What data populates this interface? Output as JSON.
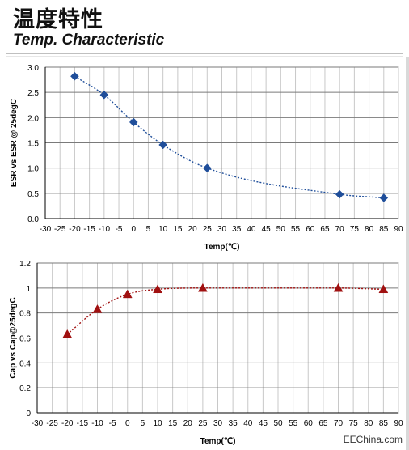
{
  "header": {
    "title_zh": "温度特性",
    "title_en": "Temp. Characteristic"
  },
  "watermark": "EEChina.com",
  "chart_data": [
    {
      "type": "line",
      "xlabel": "Temp(℃)",
      "ylabel": "ESR vs ESR @ 25degC",
      "xlim": [
        -30,
        90
      ],
      "ylim": [
        0,
        3
      ],
      "x_ticks": [
        -30,
        -25,
        -20,
        -15,
        -10,
        -5,
        0,
        5,
        10,
        15,
        20,
        25,
        30,
        35,
        40,
        45,
        50,
        55,
        60,
        65,
        70,
        75,
        80,
        85,
        90
      ],
      "y_ticks": [
        "0.0",
        "0.5",
        "1.0",
        "1.5",
        "2.0",
        "2.5",
        "3.0"
      ],
      "grid": true,
      "marker": "diamond",
      "color": "#1f4e9a",
      "x": [
        -20,
        -10,
        0,
        10,
        25,
        70,
        85
      ],
      "y": [
        2.82,
        2.45,
        1.91,
        1.46,
        1.0,
        0.48,
        0.41
      ]
    },
    {
      "type": "line",
      "xlabel": "Temp(℃)",
      "ylabel": "Cap  vs Cap@25degC",
      "xlim": [
        -30,
        90
      ],
      "ylim": [
        0,
        1.2
      ],
      "x_ticks": [
        -30,
        -25,
        -20,
        -15,
        -10,
        -5,
        0,
        5,
        10,
        15,
        20,
        25,
        30,
        35,
        40,
        45,
        50,
        55,
        60,
        65,
        70,
        75,
        80,
        85,
        90
      ],
      "y_ticks": [
        "0",
        "0.2",
        "0.4",
        "0.6",
        "0.8",
        "1",
        "1.2"
      ],
      "grid": true,
      "marker": "triangle",
      "color": "#a01010",
      "x": [
        -20,
        -10,
        0,
        10,
        25,
        70,
        85
      ],
      "y": [
        0.63,
        0.83,
        0.95,
        0.99,
        1.0,
        1.0,
        0.99
      ]
    }
  ]
}
